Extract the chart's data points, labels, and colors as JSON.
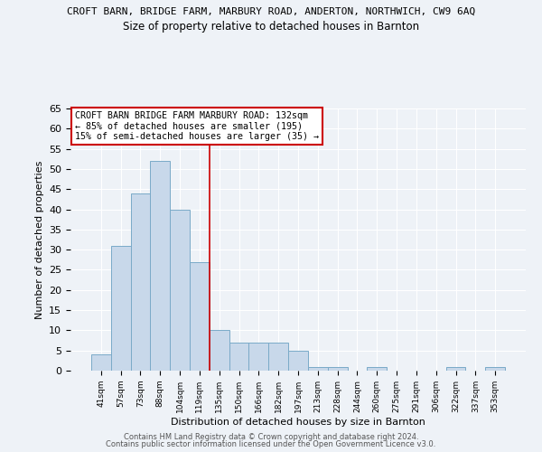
{
  "title_line1": "CROFT BARN, BRIDGE FARM, MARBURY ROAD, ANDERTON, NORTHWICH, CW9 6AQ",
  "title_line2": "Size of property relative to detached houses in Barnton",
  "xlabel": "Distribution of detached houses by size in Barnton",
  "ylabel": "Number of detached properties",
  "bar_heights": [
    4,
    31,
    44,
    52,
    40,
    27,
    10,
    7,
    7,
    7,
    5,
    1,
    1,
    0,
    1,
    0,
    0,
    0,
    1,
    0,
    1
  ],
  "bin_labels": [
    "41sqm",
    "57sqm",
    "73sqm",
    "88sqm",
    "104sqm",
    "119sqm",
    "135sqm",
    "150sqm",
    "166sqm",
    "182sqm",
    "197sqm",
    "213sqm",
    "228sqm",
    "244sqm",
    "260sqm",
    "275sqm",
    "291sqm",
    "306sqm",
    "322sqm",
    "337sqm",
    "353sqm"
  ],
  "bar_color": "#c8d8ea",
  "bar_edge_color": "#7aaac8",
  "red_line_x": 5.5,
  "red_line_color": "#cc0000",
  "ylim": [
    0,
    65
  ],
  "yticks": [
    0,
    5,
    10,
    15,
    20,
    25,
    30,
    35,
    40,
    45,
    50,
    55,
    60,
    65
  ],
  "annotation_title": "CROFT BARN BRIDGE FARM MARBURY ROAD: 132sqm",
  "annotation_line2": "← 85% of detached houses are smaller (195)",
  "annotation_line3": "15% of semi-detached houses are larger (35) →",
  "annotation_box_color": "#ffffff",
  "annotation_border_color": "#cc0000",
  "footer_line1": "Contains HM Land Registry data © Crown copyright and database right 2024.",
  "footer_line2": "Contains public sector information licensed under the Open Government Licence v3.0.",
  "bg_color": "#eef2f7",
  "grid_color": "#ffffff",
  "title1_fontsize": 8.0,
  "title2_fontsize": 8.5
}
